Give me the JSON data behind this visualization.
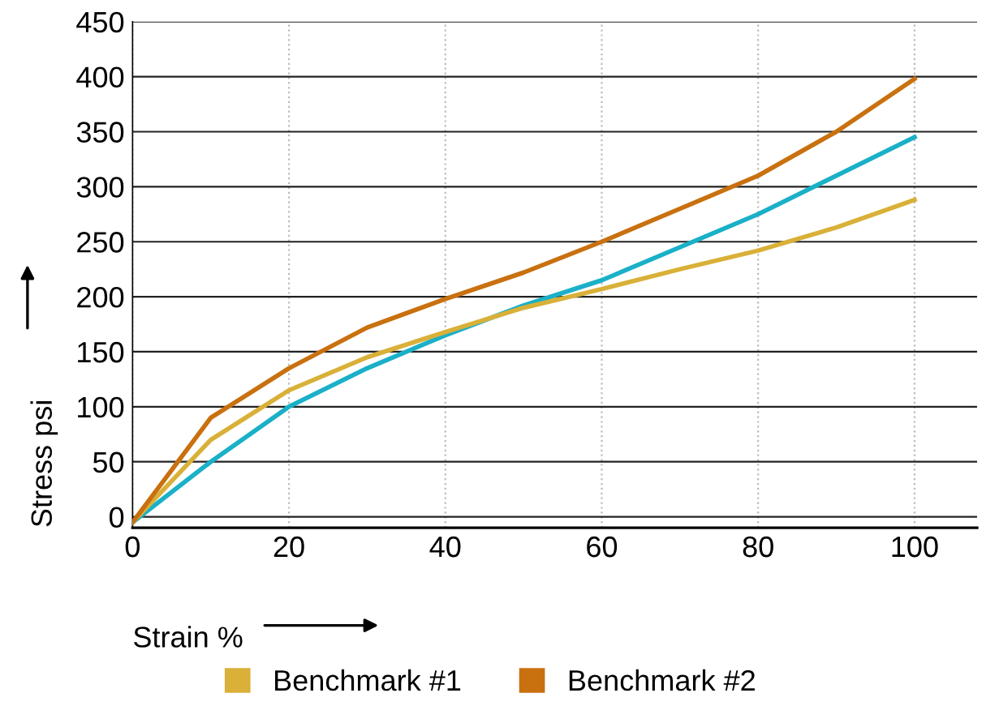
{
  "chart_data": {
    "type": "line",
    "xlabel": "Strain %",
    "ylabel": "Stress psi",
    "x": [
      0,
      10,
      20,
      30,
      40,
      50,
      60,
      70,
      80,
      90,
      100
    ],
    "series": [
      {
        "color": "#1ab0c8",
        "values": [
          -5,
          50,
          100,
          135,
          165,
          192,
          215,
          245,
          275,
          310,
          345
        ]
      },
      {
        "name": "Benchmark #1",
        "color": "#d9b038",
        "values": [
          -5,
          70,
          115,
          145,
          168,
          190,
          207,
          225,
          242,
          263,
          288
        ]
      },
      {
        "name": "Benchmark #2",
        "color": "#c9700f",
        "values": [
          -5,
          90,
          135,
          172,
          198,
          222,
          250,
          280,
          310,
          350,
          398
        ]
      }
    ],
    "xlim": [
      0,
      108
    ],
    "ylim": [
      -10,
      450
    ],
    "xticks": [
      0,
      20,
      40,
      60,
      80,
      100
    ],
    "yticks": [
      0,
      50,
      100,
      150,
      200,
      250,
      300,
      350,
      400,
      450
    ],
    "grid": true,
    "legend": "bottom",
    "marker": "none",
    "line_style": "solid"
  }
}
